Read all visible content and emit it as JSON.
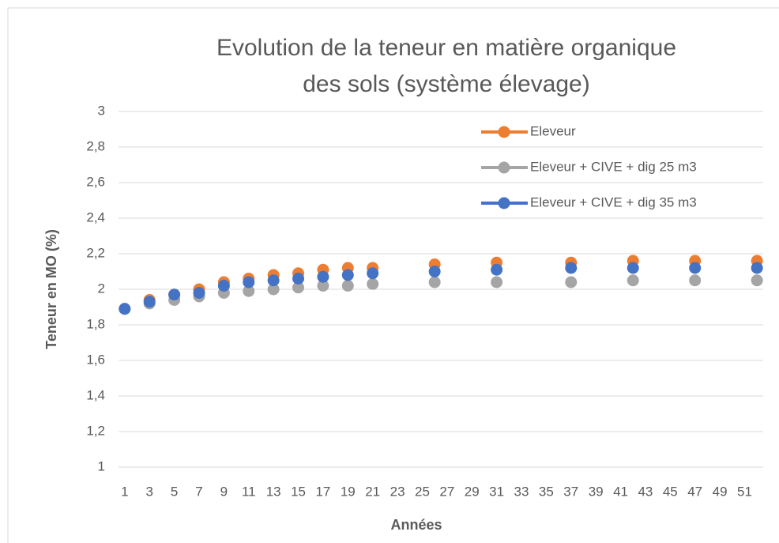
{
  "chart_data": {
    "type": "scatter",
    "title": "Evolution de la teneur en matière organique des sols (système élevage)",
    "x_label": "Années",
    "y_label": "Teneur en MO (%)",
    "x": [
      1,
      3,
      5,
      7,
      9,
      11,
      13,
      15,
      17,
      19,
      21,
      26,
      31,
      37,
      42,
      47,
      52
    ],
    "series": [
      {
        "name": "Eleveur",
        "color": "#ed7d31",
        "values": [
          1.89,
          1.94,
          1.97,
          2.0,
          2.04,
          2.06,
          2.08,
          2.09,
          2.11,
          2.12,
          2.12,
          2.14,
          2.15,
          2.15,
          2.16,
          2.16,
          2.16
        ]
      },
      {
        "name": "Eleveur + CIVE + dig 25 m3",
        "color": "#a5a5a5",
        "values": [
          1.89,
          1.92,
          1.94,
          1.96,
          1.98,
          1.99,
          2.0,
          2.01,
          2.02,
          2.02,
          2.03,
          2.04,
          2.04,
          2.04,
          2.05,
          2.05,
          2.05
        ]
      },
      {
        "name": "Eleveur + CIVE + dig 35 m3",
        "color": "#4472c4",
        "values": [
          1.89,
          1.93,
          1.97,
          1.98,
          2.02,
          2.04,
          2.05,
          2.06,
          2.07,
          2.08,
          2.09,
          2.1,
          2.11,
          2.12,
          2.12,
          2.12,
          2.12
        ]
      }
    ],
    "xlim": [
      0.5,
      52.5
    ],
    "xticks": [
      1,
      3,
      5,
      7,
      9,
      11,
      13,
      15,
      17,
      19,
      21,
      23,
      25,
      27,
      29,
      31,
      33,
      35,
      37,
      39,
      41,
      43,
      45,
      47,
      49,
      51
    ],
    "ylim": [
      1,
      3
    ],
    "yticks": [
      1,
      {
        "value": 1.2,
        "label": "1,2"
      },
      {
        "value": 1.4,
        "label": "1,4"
      },
      {
        "value": 1.6,
        "label": "1,6"
      },
      {
        "value": 1.8,
        "label": "1,8"
      },
      2,
      {
        "value": 2.2,
        "label": "2,2"
      },
      {
        "value": 2.4,
        "label": "2,4"
      },
      {
        "value": 2.6,
        "label": "2,6"
      },
      {
        "value": 2.8,
        "label": "2,8"
      },
      3
    ],
    "grid": true,
    "legend": "upper right"
  }
}
